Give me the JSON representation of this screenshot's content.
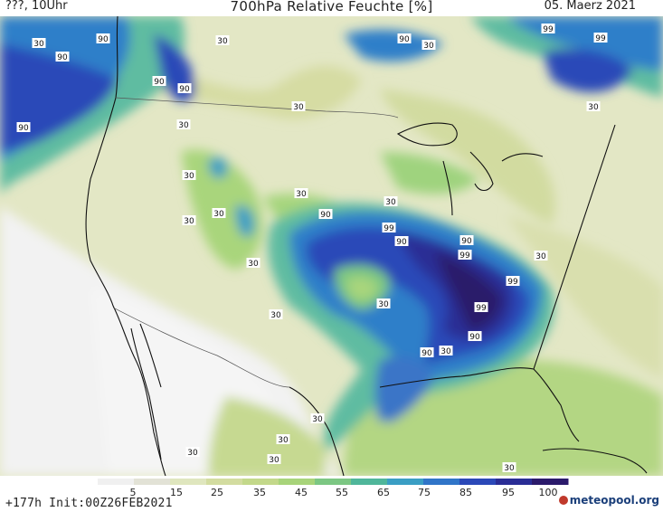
{
  "header": {
    "left": "???, 10Uhr",
    "title": "700hPa Relative Feuchte [%]",
    "right": "05. Maerz 2021"
  },
  "footer": {
    "run_info": "+177h Init:00Z26FEB2021",
    "logo": "meteopool.org"
  },
  "legend": {
    "ticks": [
      "5",
      "15",
      "25",
      "35",
      "45",
      "55",
      "65",
      "75",
      "85",
      "95",
      "100"
    ],
    "colors": [
      "#f0f0f0",
      "#e2e2d6",
      "#dfe6be",
      "#d3dca0",
      "#c3d88a",
      "#a8d47a",
      "#7cc783",
      "#4fb69a",
      "#3a9ec4",
      "#3075c8",
      "#2b48b8",
      "#2a2d95",
      "#2b1a6b"
    ]
  },
  "map": {
    "contour_labels": [
      "90",
      "90",
      "30",
      "90",
      "90",
      "30",
      "90",
      "30",
      "30",
      "30",
      "30",
      "30",
      "30",
      "30",
      "90",
      "99",
      "90",
      "90",
      "99",
      "99",
      "99",
      "90",
      "30",
      "30",
      "90",
      "30",
      "30",
      "30",
      "30",
      "30",
      "90",
      "30",
      "30",
      "99",
      "99",
      "30",
      "30",
      "30"
    ],
    "colors": {
      "dry": "#f1f1f1",
      "light": "#e5e8c9",
      "tan": "#d6dda6",
      "green": "#a9d57c",
      "teal": "#5fbca1",
      "blue": "#2f7fc9",
      "dark_blue": "#2b48b8",
      "navy": "#2a2d95",
      "purple": "#2b1a6b"
    }
  }
}
